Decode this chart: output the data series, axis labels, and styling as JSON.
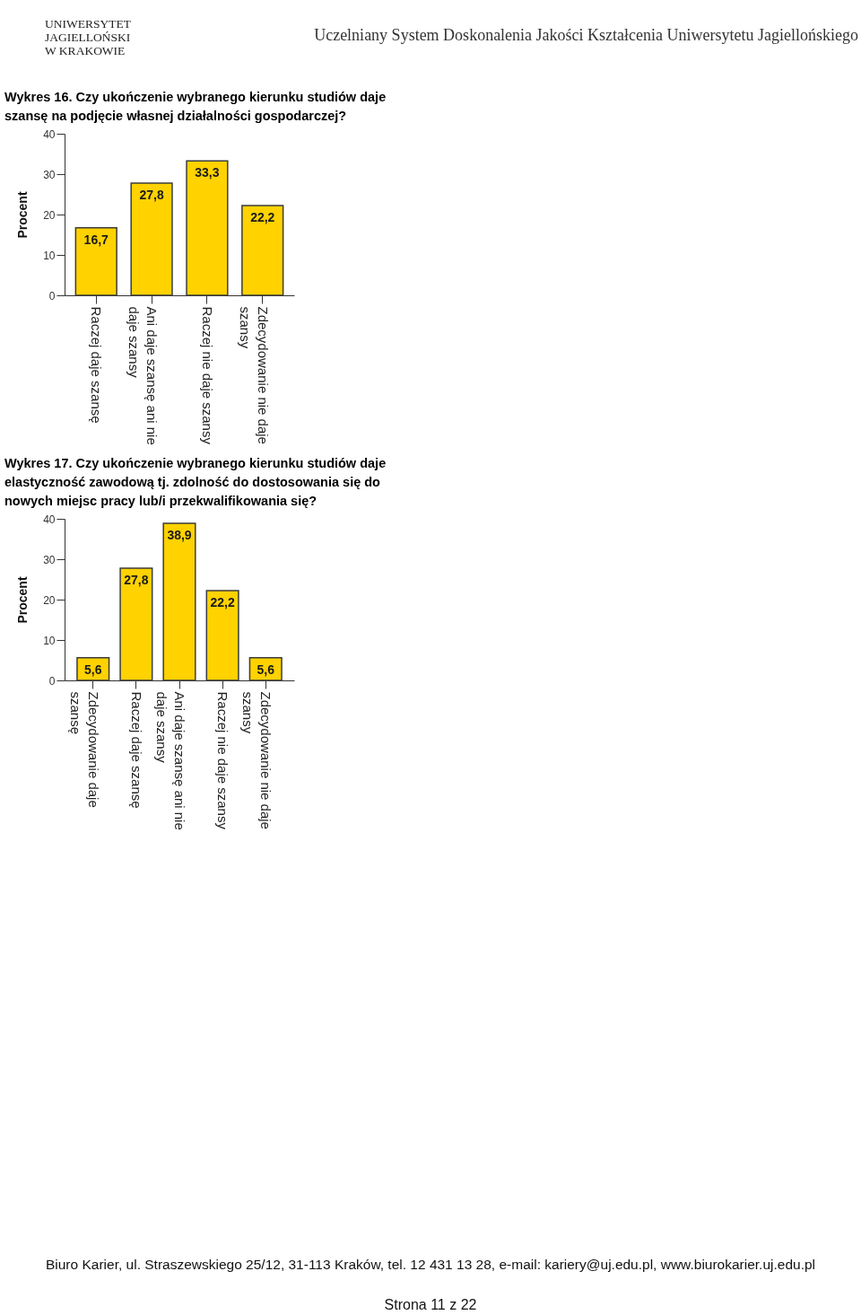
{
  "chart_data": [
    {
      "type": "other",
      "annotations": [
        "UNIWERSYTET",
        "JAGIELLOŃSKI",
        "W KRAKOWIE",
        "Uczelniany System Doskonalenia Jakości Kształcenia Uniwersytetu Jagiellońskiego"
      ]
    },
    {
      "type": "bar",
      "title": "Wykres 16. Czy ukończenie wybranego kierunku studiów daje szansę na podjęcie własnej działalności gospodarczej?",
      "ylabel": "Procent",
      "categories": [
        "Raczej daje szansę",
        "Ani daje szansę ani nie daje szansy",
        "Raczej nie daje szansy",
        "Zdecydowanie nie daje szansy"
      ],
      "values": [
        16.7,
        27.8,
        33.3,
        22.2
      ],
      "value_labels": [
        "16,7",
        "27,8",
        "33,3",
        "22,2"
      ],
      "color": "#ffd200",
      "ylim": [
        0,
        40
      ],
      "yticks": [
        0,
        10,
        20,
        30,
        40
      ]
    },
    {
      "type": "bar",
      "title": "Wykres 17. Czy ukończenie wybranego kierunku studiów daje elastyczność zawodową tj. zdolność do dostosowania się do nowych miejsc pracy lub/i przekwalifikowania się?",
      "ylabel": "Procent",
      "categories": [
        "Zdecydowanie daje szansę",
        "Raczej daje szansę",
        "Ani daje szansę ani nie daje szansy",
        "Raczej nie daje szansy",
        "Zdecydowanie nie daje szansy"
      ],
      "values": [
        5.6,
        27.8,
        38.9,
        22.2,
        5.6
      ],
      "value_labels": [
        "5,6",
        "27,8",
        "38,9",
        "22,2",
        "5,6"
      ],
      "color": "#ffd200",
      "ylim": [
        0,
        40
      ],
      "yticks": [
        0,
        10,
        20,
        30,
        40
      ]
    },
    {
      "type": "other",
      "annotations": [
        "Biuro Karier, ul. Straszewskiego 25/12, 31-113 Kraków, tel. 12 431 13 28, e-mail: kariery@uj.edu.pl, www.biurokarier.uj.edu.pl",
        "Strona 11 z 22"
      ]
    }
  ]
}
